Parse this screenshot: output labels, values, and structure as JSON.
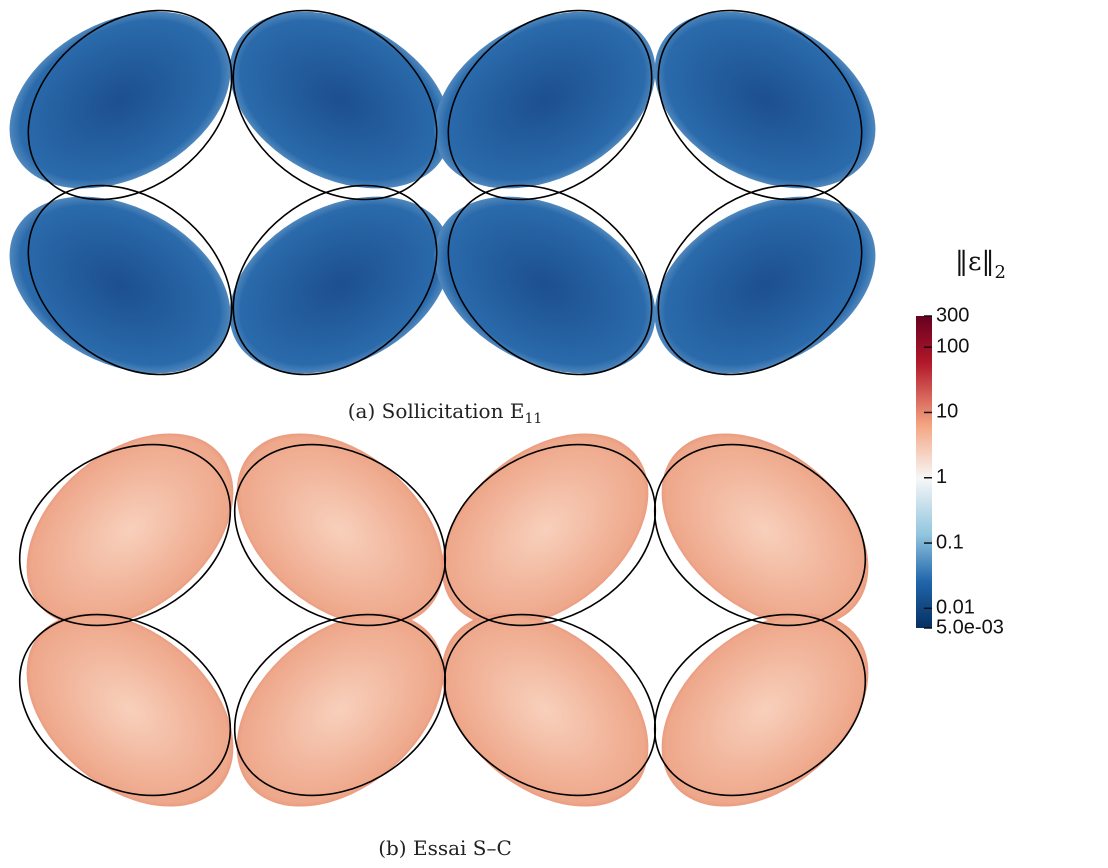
{
  "panels": [
    {
      "caption": "(a) Sollicitation E",
      "caption_subscript": "11"
    },
    {
      "caption": "(b) Essai S–C"
    }
  ],
  "colorbar": {
    "label": "‖ε‖",
    "label_subscript": "2",
    "scale": "log",
    "lim": [
      0.005,
      300
    ],
    "ticks": [
      300,
      100,
      10,
      1,
      0.1,
      0.01,
      {
        "value": 0.005,
        "label": "5.0e-03"
      }
    ]
  }
}
